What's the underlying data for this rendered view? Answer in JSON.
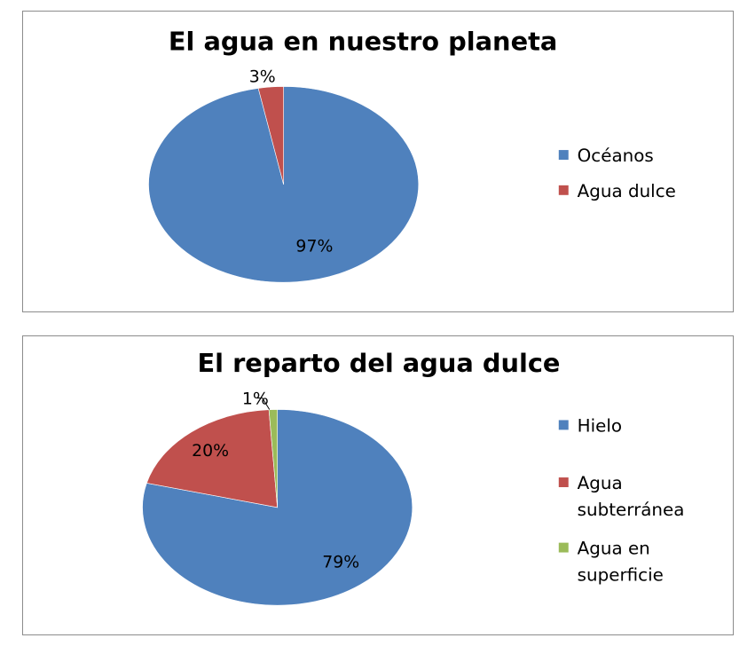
{
  "chart_data": [
    {
      "type": "pie",
      "title": "El agua en nuestro planeta",
      "categories": [
        "Océanos",
        "Agua dulce"
      ],
      "values": [
        97,
        3
      ],
      "data_labels": [
        "97%",
        "3%"
      ],
      "colors": [
        "#4f81bd",
        "#c0504d"
      ],
      "legend": "right"
    },
    {
      "type": "pie",
      "title": "El reparto del agua dulce",
      "categories": [
        "Hielo",
        "Agua subterránea",
        "Agua en superficie"
      ],
      "values": [
        79,
        20,
        1
      ],
      "data_labels": [
        "79%",
        "20%",
        "1%"
      ],
      "colors": [
        "#4f81bd",
        "#c0504d",
        "#9bbb59"
      ],
      "legend": "right"
    }
  ]
}
